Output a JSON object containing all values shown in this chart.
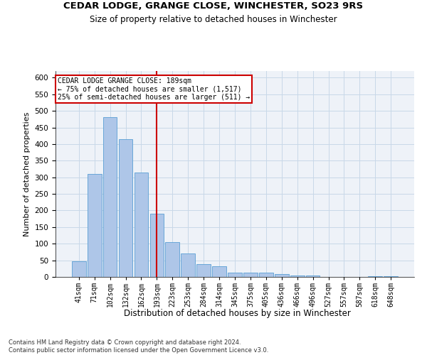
{
  "title_line1": "CEDAR LODGE, GRANGE CLOSE, WINCHESTER, SO23 9RS",
  "title_line2": "Size of property relative to detached houses in Winchester",
  "xlabel": "Distribution of detached houses by size in Winchester",
  "ylabel": "Number of detached properties",
  "categories": [
    "41sqm",
    "71sqm",
    "102sqm",
    "132sqm",
    "162sqm",
    "193sqm",
    "223sqm",
    "253sqm",
    "284sqm",
    "314sqm",
    "345sqm",
    "375sqm",
    "405sqm",
    "436sqm",
    "466sqm",
    "496sqm",
    "527sqm",
    "557sqm",
    "587sqm",
    "618sqm",
    "648sqm"
  ],
  "values": [
    46,
    311,
    480,
    415,
    315,
    190,
    105,
    70,
    38,
    32,
    13,
    12,
    13,
    8,
    5,
    4,
    1,
    1,
    0,
    3,
    3
  ],
  "bar_color": "#aec6e8",
  "bar_edge_color": "#5a9fd4",
  "grid_color": "#c8d8e8",
  "background_color": "#eef2f8",
  "vline_index": 5,
  "vline_color": "#cc0000",
  "annotation_text": "CEDAR LODGE GRANGE CLOSE: 189sqm\n← 75% of detached houses are smaller (1,517)\n25% of semi-detached houses are larger (511) →",
  "annotation_box_color": "#cc0000",
  "ylim": [
    0,
    620
  ],
  "yticks": [
    0,
    50,
    100,
    150,
    200,
    250,
    300,
    350,
    400,
    450,
    500,
    550,
    600
  ],
  "footer_line1": "Contains HM Land Registry data © Crown copyright and database right 2024.",
  "footer_line2": "Contains public sector information licensed under the Open Government Licence v3.0."
}
